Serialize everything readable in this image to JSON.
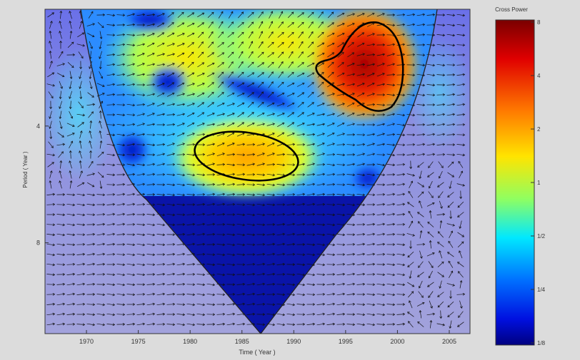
{
  "chart_data": {
    "type": "heatmap",
    "title": "",
    "xlabel": "Time ( Year )",
    "ylabel": "Period   ( Year )",
    "xlim": [
      1966,
      2007
    ],
    "x_ticks": [
      1970,
      1975,
      1980,
      1985,
      1990,
      1995,
      2000,
      2005
    ],
    "y_ticks": [
      {
        "label": "4",
        "pos": 0.36
      },
      {
        "label": "8",
        "pos": 0.72
      }
    ],
    "colorbar": {
      "label": "Cross Power",
      "scale": "log2",
      "range": [
        0.125,
        8
      ],
      "tick_labels": [
        "8",
        "4",
        "2",
        "1",
        "1/2",
        "1/4",
        "1/8"
      ]
    },
    "colors": {
      "deep_blue": "#00008b",
      "blue": "#1e3cff",
      "cyan": "#00e0ff",
      "yellow": "#ffee00",
      "orange": "#ff8800",
      "red": "#b00000",
      "cone_of_influence_shade": "#9a9ad6"
    },
    "significance_contours": [
      {
        "region": "1979-1989, period ~4 yr",
        "level": "significant"
      },
      {
        "region": "1992-2001, period ~2-3 yr",
        "level": "significant"
      }
    ],
    "phase_arrows": true,
    "cone_of_influence": true
  }
}
